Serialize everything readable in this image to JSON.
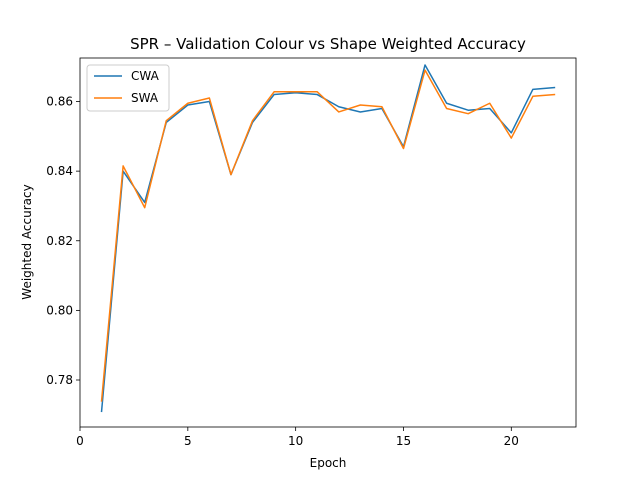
{
  "chart_data": {
    "type": "line",
    "title": "SPR – Validation Colour vs Shape Weighted Accuracy",
    "xlabel": "Epoch",
    "ylabel": "Weighted Accuracy",
    "xlim": [
      0,
      23
    ],
    "ylim": [
      0.7665,
      0.8725
    ],
    "x_ticks": [
      0,
      5,
      10,
      15,
      20
    ],
    "y_ticks": [
      0.78,
      0.8,
      0.82,
      0.84,
      0.86
    ],
    "y_tick_labels": [
      "0.78",
      "0.80",
      "0.82",
      "0.84",
      "0.86"
    ],
    "grid": false,
    "legend_position": "top-left",
    "x": [
      1,
      2,
      3,
      4,
      5,
      6,
      7,
      8,
      9,
      10,
      11,
      12,
      13,
      14,
      15,
      16,
      17,
      18,
      19,
      20,
      21,
      22
    ],
    "series": [
      {
        "name": "CWA",
        "color": "#1f77b4",
        "values": [
          0.771,
          0.84,
          0.831,
          0.854,
          0.859,
          0.86,
          0.839,
          0.854,
          0.862,
          0.8625,
          0.862,
          0.8585,
          0.857,
          0.858,
          0.847,
          0.8705,
          0.8595,
          0.8575,
          0.858,
          0.851,
          0.8635,
          0.864
        ]
      },
      {
        "name": "SWA",
        "color": "#ff7f0e",
        "values": [
          0.774,
          0.8415,
          0.8295,
          0.8545,
          0.8595,
          0.861,
          0.839,
          0.8545,
          0.8628,
          0.8628,
          0.8628,
          0.857,
          0.859,
          0.8585,
          0.8465,
          0.869,
          0.858,
          0.8565,
          0.8595,
          0.8495,
          0.8615,
          0.862
        ]
      }
    ]
  }
}
